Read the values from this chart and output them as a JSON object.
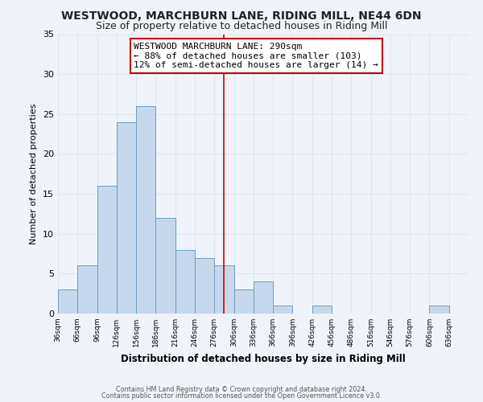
{
  "title": "WESTWOOD, MARCHBURN LANE, RIDING MILL, NE44 6DN",
  "subtitle": "Size of property relative to detached houses in Riding Mill",
  "xlabel": "Distribution of detached houses by size in Riding Mill",
  "ylabel": "Number of detached properties",
  "footer_line1": "Contains HM Land Registry data © Crown copyright and database right 2024.",
  "footer_line2": "Contains public sector information licensed under the Open Government Licence v3.0.",
  "bin_labels": [
    "36sqm",
    "66sqm",
    "96sqm",
    "126sqm",
    "156sqm",
    "186sqm",
    "216sqm",
    "246sqm",
    "276sqm",
    "306sqm",
    "336sqm",
    "366sqm",
    "396sqm",
    "426sqm",
    "456sqm",
    "486sqm",
    "516sqm",
    "546sqm",
    "576sqm",
    "606sqm",
    "636sqm"
  ],
  "bin_edges": [
    36,
    66,
    96,
    126,
    156,
    186,
    216,
    246,
    276,
    306,
    336,
    366,
    396,
    426,
    456,
    486,
    516,
    546,
    576,
    606,
    636
  ],
  "bar_heights": [
    3,
    6,
    16,
    24,
    26,
    12,
    8,
    7,
    6,
    3,
    4,
    1,
    0,
    1,
    0,
    0,
    0,
    0,
    0,
    1,
    0
  ],
  "bar_color": "#c8d8ec",
  "bar_edgecolor": "#6a9fc0",
  "grid_color": "#dde8f0",
  "reference_line_x": 290,
  "reference_line_color": "#cc0000",
  "annotation_box_text": "WESTWOOD MARCHBURN LANE: 290sqm\n← 88% of detached houses are smaller (103)\n12% of semi-detached houses are larger (14) →",
  "ylim": [
    0,
    35
  ],
  "yticks": [
    0,
    5,
    10,
    15,
    20,
    25,
    30,
    35
  ],
  "background_color": "#f0f4fa",
  "plot_bg_color": "#f0f4fa",
  "title_fontsize": 10,
  "subtitle_fontsize": 9,
  "bin_width": 30
}
